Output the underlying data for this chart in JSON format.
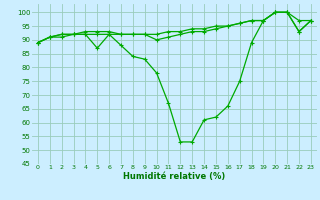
{
  "xlabel": "Humidité relative (%)",
  "background_color": "#cceeff",
  "grid_color": "#99ccbb",
  "line_color": "#00aa00",
  "xlim": [
    -0.5,
    23.5
  ],
  "ylim": [
    45,
    103
  ],
  "yticks": [
    45,
    50,
    55,
    60,
    65,
    70,
    75,
    80,
    85,
    90,
    95,
    100
  ],
  "xticks": [
    0,
    1,
    2,
    3,
    4,
    5,
    6,
    7,
    8,
    9,
    10,
    11,
    12,
    13,
    14,
    15,
    16,
    17,
    18,
    19,
    20,
    21,
    22,
    23
  ],
  "series": [
    [
      89,
      91,
      92,
      92,
      93,
      93,
      93,
      92,
      92,
      92,
      92,
      93,
      93,
      94,
      94,
      95,
      95,
      96,
      97,
      97,
      100,
      100,
      97,
      97
    ],
    [
      89,
      91,
      92,
      92,
      92,
      92,
      92,
      92,
      92,
      92,
      90,
      91,
      92,
      93,
      93,
      94,
      95,
      96,
      97,
      97,
      100,
      100,
      93,
      97
    ],
    [
      89,
      91,
      91,
      92,
      92,
      87,
      92,
      88,
      84,
      83,
      78,
      67,
      53,
      53,
      61,
      62,
      66,
      75,
      89,
      97,
      100,
      100,
      93,
      97
    ]
  ]
}
